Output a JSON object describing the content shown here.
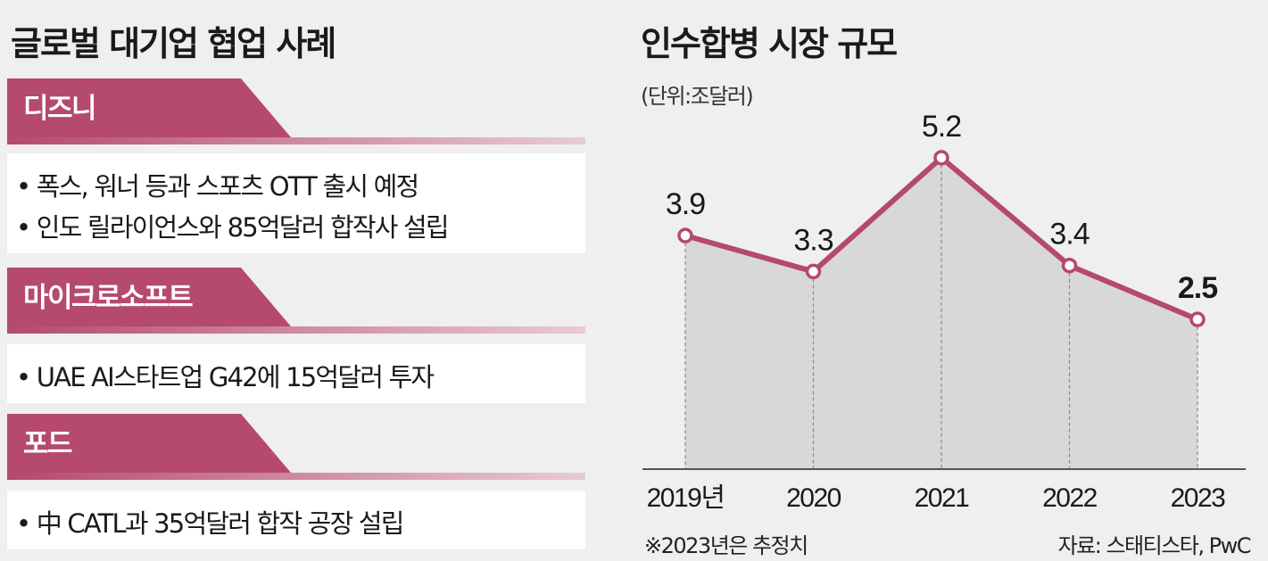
{
  "left_panel": {
    "title": "글로벌 대기업 협업 사례",
    "sections": [
      {
        "name": "디즈니",
        "items": [
          "• 폭스, 워너 등과 스포츠 OTT 출시 예정",
          "• 인도 릴라이언스와 85억달러 합작사 설립"
        ]
      },
      {
        "name": "마이크로소프트",
        "items": [
          "• UAE AI스타트업 G42에 15억달러 투자"
        ]
      },
      {
        "name": "포드",
        "items": [
          "• 中 CATL과 35억달러 합작 공장 설립"
        ]
      }
    ]
  },
  "chart_data": {
    "type": "area",
    "title": "인수합병 시장 규모",
    "unit": "(단위:조달러)",
    "categories": [
      "2019년",
      "2020",
      "2021",
      "2022",
      "2023"
    ],
    "values": [
      3.9,
      3.3,
      5.2,
      3.4,
      2.5
    ],
    "value_labels": [
      "3.9",
      "3.3",
      "5.2",
      "3.4",
      "2.5"
    ],
    "ylim": [
      0,
      5.6
    ],
    "grid": false,
    "footnote": "※2023년은 추정치",
    "source": "자료: 스태티스타, PwC"
  },
  "colors": {
    "accent": "#b5496e",
    "area_fill": "#d8d8d8",
    "background": "#efefef"
  }
}
